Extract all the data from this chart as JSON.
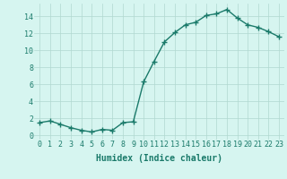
{
  "xlabel": "Humidex (Indice chaleur)",
  "ylabel": "",
  "x": [
    0,
    1,
    2,
    3,
    4,
    5,
    6,
    7,
    8,
    9,
    10,
    11,
    12,
    13,
    14,
    15,
    16,
    17,
    18,
    19,
    20,
    21,
    22,
    23
  ],
  "y": [
    1.5,
    1.7,
    1.3,
    0.9,
    0.6,
    0.4,
    0.7,
    0.6,
    1.5,
    1.6,
    6.3,
    8.7,
    11.0,
    12.1,
    13.0,
    13.3,
    14.1,
    14.3,
    14.8,
    13.8,
    13.0,
    12.7,
    12.2,
    11.6
  ],
  "line_color": "#1a7a6a",
  "marker": "+",
  "marker_size": 4,
  "background_color": "#d6f5f0",
  "grid_color": "#b0d8d0",
  "ylim": [
    -0.5,
    15.5
  ],
  "xlim": [
    -0.5,
    23.5
  ],
  "yticks": [
    0,
    2,
    4,
    6,
    8,
    10,
    12,
    14
  ],
  "xticks": [
    0,
    1,
    2,
    3,
    4,
    5,
    6,
    7,
    8,
    9,
    10,
    11,
    12,
    13,
    14,
    15,
    16,
    17,
    18,
    19,
    20,
    21,
    22,
    23
  ],
  "tick_fontsize": 6,
  "xlabel_fontsize": 7,
  "line_width": 1.0,
  "marker_edge_width": 1.0
}
